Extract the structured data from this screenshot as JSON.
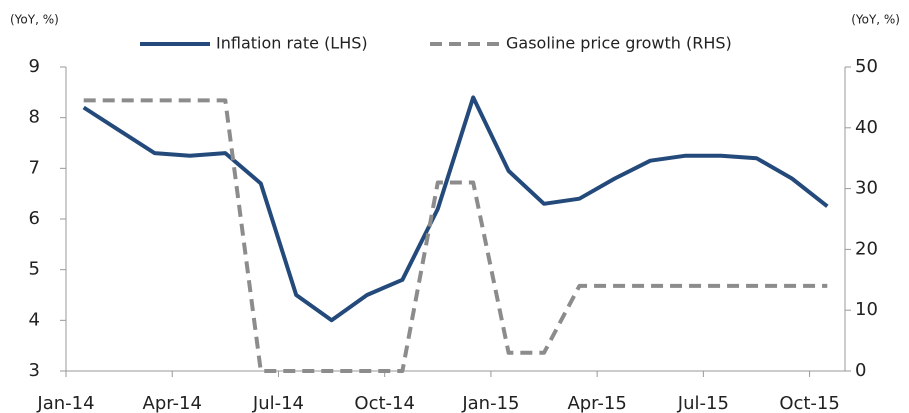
{
  "chart_data": {
    "type": "line",
    "y_label": "(YoY, %)",
    "y2_label": "(YoY, %)",
    "categories": [
      "Jan-14",
      null,
      null,
      "Apr-14",
      null,
      null,
      "Jul-14",
      null,
      null,
      "Oct-14",
      null,
      null,
      "Jan-15",
      null,
      null,
      "Apr-15",
      null,
      null,
      "Jul-15",
      null,
      null,
      "Oct-15"
    ],
    "series": [
      {
        "name": "Inflation rate (LHS)",
        "color": "#234a7b",
        "dash": false,
        "values": [
          8.2,
          7.75,
          7.3,
          7.25,
          7.3,
          6.7,
          4.5,
          4.0,
          4.5,
          4.8,
          6.2,
          8.4,
          6.95,
          6.3,
          6.4,
          6.8,
          7.15,
          7.25,
          7.25,
          7.2,
          6.8,
          6.25
        ]
      },
      {
        "name": "Gasoline price growth (RHS)",
        "color": "#8c8c8c",
        "dash": true,
        "axis": "y2",
        "values": [
          44.5,
          44.5,
          44.5,
          44.5,
          44.5,
          0,
          0,
          0,
          0,
          0,
          31,
          31,
          3,
          3,
          14,
          14,
          14,
          14,
          14,
          14,
          14,
          14
        ]
      }
    ],
    "ylim": [
      3,
      9
    ],
    "yticks": [
      3,
      4,
      5,
      6,
      7,
      8,
      9
    ],
    "y2lim": [
      0,
      50
    ],
    "y2ticks": [
      0,
      10,
      20,
      30,
      40,
      50
    ],
    "legend": "top"
  }
}
